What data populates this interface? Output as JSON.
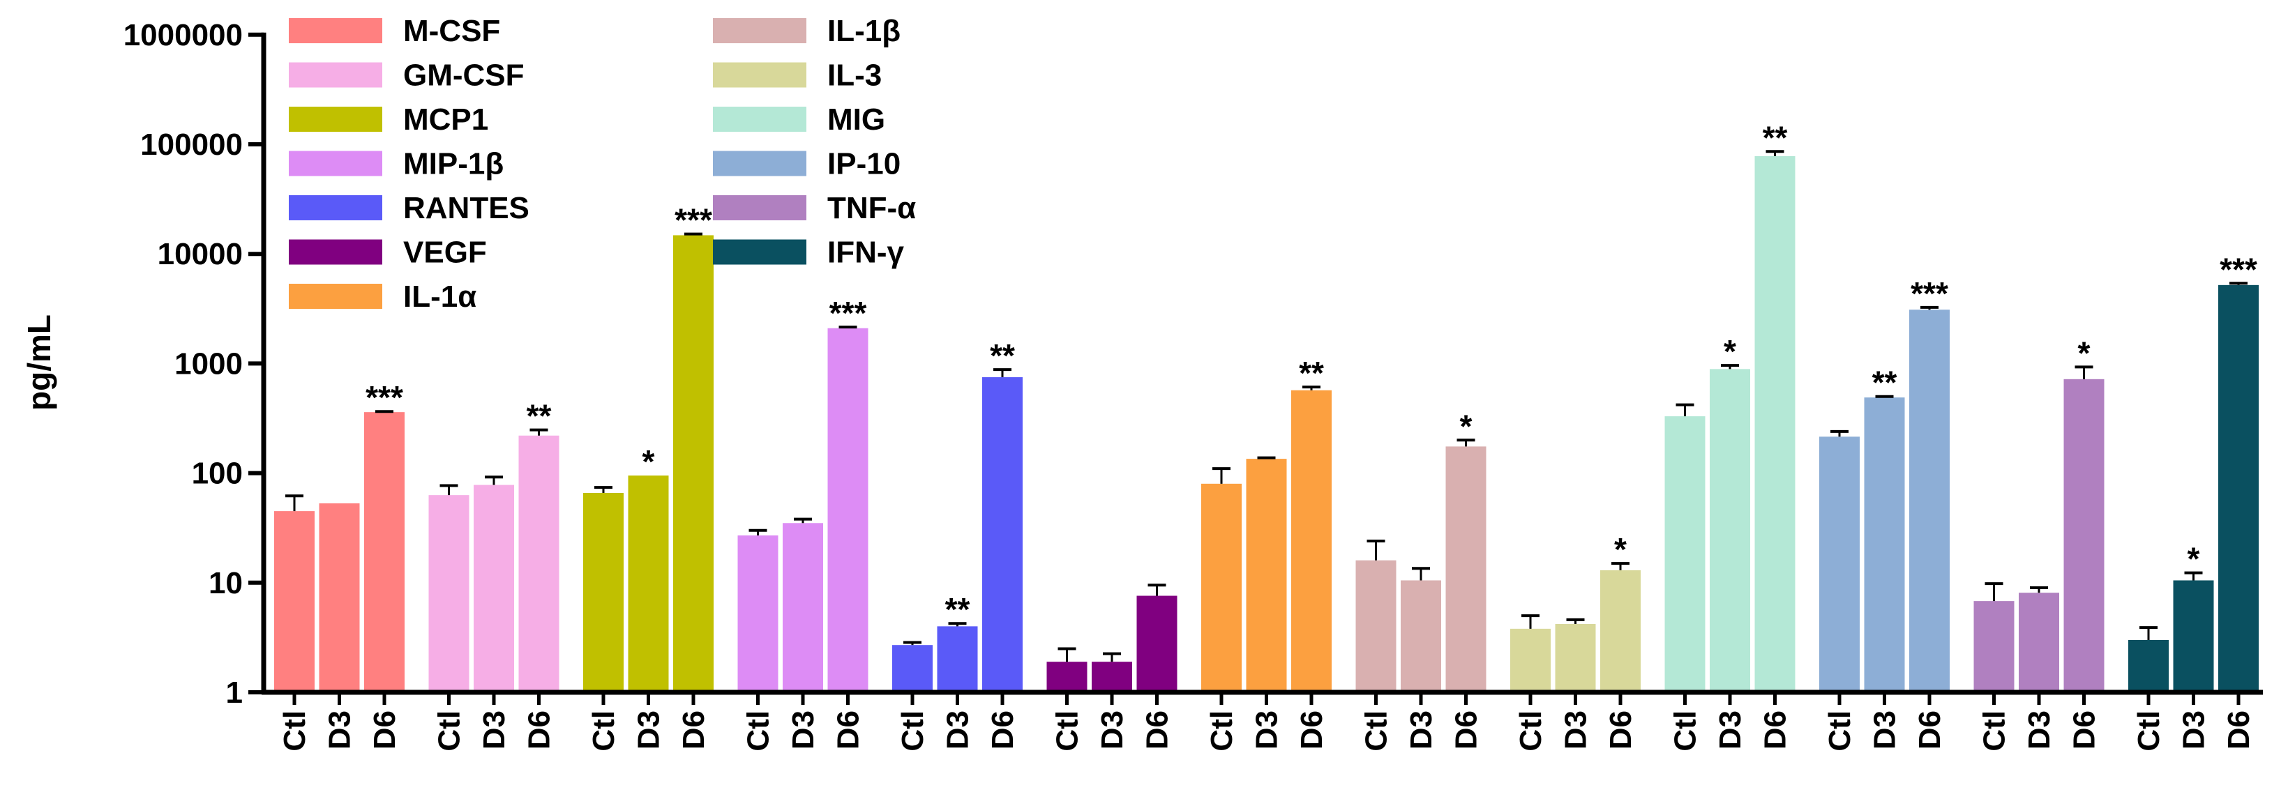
{
  "chart_data": {
    "type": "bar",
    "scale": "log10",
    "ylabel": "pg/mL",
    "ylim": [
      1,
      1000000
    ],
    "yticks": [
      {
        "value": 1,
        "label": "1"
      },
      {
        "value": 10,
        "label": "10"
      },
      {
        "value": 100,
        "label": "100"
      },
      {
        "value": 1000,
        "label": "1000"
      },
      {
        "value": 10000,
        "label": "10000"
      },
      {
        "value": 100000,
        "label": "100000"
      },
      {
        "value": 1000000,
        "label": "1000000"
      }
    ],
    "conditions": [
      "Ctl",
      "D3",
      "D6"
    ],
    "groups": [
      {
        "name": "M-CSF",
        "color": "#ff8080",
        "values": [
          45,
          53,
          360
        ],
        "errors": [
          62,
          null,
          365
        ],
        "sig": [
          "",
          "",
          "***"
        ]
      },
      {
        "name": "GM-CSF",
        "color": "#f6aee6",
        "values": [
          63,
          78,
          220
        ],
        "errors": [
          77,
          92,
          248
        ],
        "sig": [
          "",
          "",
          "**"
        ]
      },
      {
        "name": "MCP1",
        "color": "#c0c000",
        "values": [
          66,
          95,
          14800
        ],
        "errors": [
          74,
          null,
          15200
        ],
        "sig": [
          "",
          "*",
          "***"
        ]
      },
      {
        "name": "MIP-1β",
        "color": "#dd8cf5",
        "values": [
          27,
          35,
          2100
        ],
        "errors": [
          30,
          38,
          2150
        ],
        "sig": [
          "",
          "",
          "***"
        ]
      },
      {
        "name": "RANTES",
        "color": "#5a5af8",
        "values": [
          2.7,
          4.0,
          750
        ],
        "errors": [
          2.85,
          4.25,
          880
        ],
        "sig": [
          "",
          "**",
          "**"
        ]
      },
      {
        "name": "VEGF",
        "color": "#800080",
        "values": [
          1.9,
          1.9,
          7.6
        ],
        "errors": [
          2.5,
          2.25,
          9.5
        ],
        "sig": [
          "",
          "",
          ""
        ]
      },
      {
        "name": "IL-1α",
        "color": "#fca040",
        "values": [
          80,
          135,
          570
        ],
        "errors": [
          110,
          138,
          610
        ],
        "sig": [
          "",
          "",
          "**"
        ]
      },
      {
        "name": "IL-1β",
        "color": "#d9b0b0",
        "values": [
          16,
          10.5,
          175
        ],
        "errors": [
          24,
          13.5,
          200
        ],
        "sig": [
          "",
          "",
          "*"
        ]
      },
      {
        "name": "IL-3",
        "color": "#d8d89a",
        "values": [
          3.8,
          4.2,
          13
        ],
        "errors": [
          5.0,
          4.6,
          15
        ],
        "sig": [
          "",
          "",
          "*"
        ]
      },
      {
        "name": "MIG",
        "color": "#b4e8d6",
        "values": [
          330,
          890,
          78000
        ],
        "errors": [
          420,
          960,
          86000
        ],
        "sig": [
          "",
          "*",
          "**"
        ]
      },
      {
        "name": "IP-10",
        "color": "#8daed6",
        "values": [
          215,
          490,
          3100
        ],
        "errors": [
          240,
          500,
          3250
        ],
        "sig": [
          "",
          "**",
          "***"
        ]
      },
      {
        "name": "TNF-α",
        "color": "#b080c0",
        "values": [
          6.8,
          8.1,
          720
        ],
        "errors": [
          9.8,
          9.0,
          930
        ],
        "sig": [
          "",
          "",
          "*"
        ]
      },
      {
        "name": "IFN-γ",
        "color": "#0a5060",
        "values": [
          3.0,
          10.5,
          5200
        ],
        "errors": [
          3.9,
          12.3,
          5400
        ],
        "sig": [
          "",
          "*",
          "***"
        ]
      }
    ],
    "legend": {
      "placement": "top-left",
      "columns": [
        [
          "M-CSF",
          "GM-CSF",
          "MCP1",
          "MIP-1β",
          "RANTES",
          "VEGF",
          "IL-1α"
        ],
        [
          "IL-1β",
          "IL-3",
          "MIG",
          "IP-10",
          "TNF-α",
          "IFN-γ"
        ]
      ]
    }
  }
}
